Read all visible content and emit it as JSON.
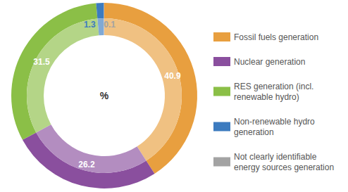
{
  "chart_data": {
    "type": "pie",
    "center_label": "%",
    "categories": [
      "Fossil fuels generation",
      "Nuclear generation",
      "RES generation (incl. renewable hydro)",
      "Non-renewable hydro generation",
      "Not clearly identifiable energy sources generation"
    ],
    "values": [
      40.9,
      26.2,
      31.5,
      1.3,
      0.1
    ],
    "colors": [
      "#e89f3f",
      "#8a4f9e",
      "#8bbf47",
      "#3c7bbf",
      "#a3a3a3"
    ],
    "data_labels": true,
    "legend": "right"
  }
}
